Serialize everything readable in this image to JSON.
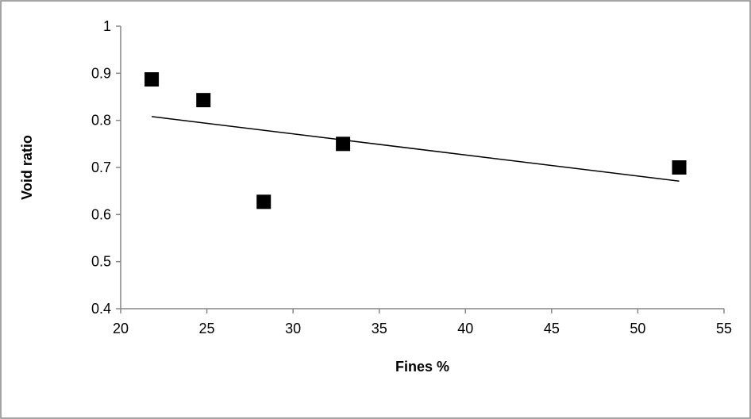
{
  "chart_data": {
    "type": "scatter",
    "title": "",
    "xlabel": "Fines %",
    "ylabel": "Void ratio",
    "xlim": [
      20,
      55
    ],
    "ylim": [
      0.4,
      1
    ],
    "xticks": [
      "20",
      "25",
      "30",
      "35",
      "40",
      "45",
      "50",
      "55"
    ],
    "yticks": [
      "0.4",
      "0.5",
      "0.6",
      "0.7",
      "0.8",
      "0.9",
      "1"
    ],
    "grid": false,
    "legend": "none",
    "marker": "square",
    "marker_color": "#000000",
    "line_color": "#000000",
    "series": [
      {
        "points": [
          {
            "x": 21.8,
            "y": 0.887
          },
          {
            "x": 24.8,
            "y": 0.843
          },
          {
            "x": 28.3,
            "y": 0.627
          },
          {
            "x": 32.9,
            "y": 0.75
          },
          {
            "x": 52.4,
            "y": 0.7
          }
        ]
      }
    ],
    "trendline": {
      "type": "linear",
      "from": {
        "x": 21.8,
        "y": 0.808
      },
      "to": {
        "x": 52.4,
        "y": 0.671
      }
    }
  }
}
